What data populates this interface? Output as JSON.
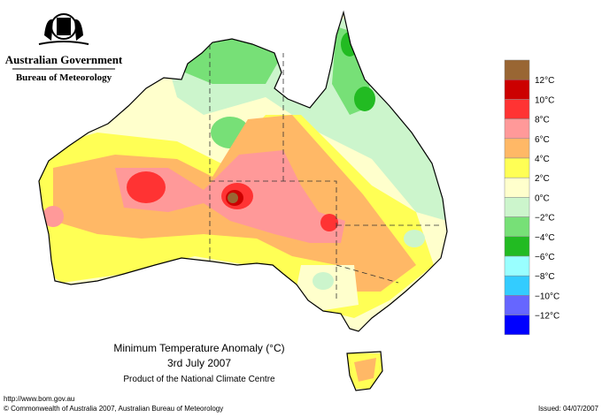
{
  "header": {
    "government": "Australian Government",
    "agency": "Bureau of Meteorology"
  },
  "title": {
    "line1": "Minimum Temperature Anomaly (°C)",
    "line2": "3rd July 2007",
    "line3": "Product of the National Climate Centre"
  },
  "footer": {
    "url": "http://www.bom.gov.au",
    "copyright": "© Commonwealth of Australia 2007, Australian Bureau of Meteorology",
    "issued": "Issued: 04/07/2007"
  },
  "legend": {
    "colors": [
      "#996633",
      "#cc0000",
      "#ff3333",
      "#ff9999",
      "#ffb866",
      "#ffff55",
      "#ffffcc",
      "#ccf5cc",
      "#77e077",
      "#22bb22",
      "#99ffff",
      "#33ccff",
      "#6666ff",
      "#0000ff"
    ],
    "labels": [
      "12°C",
      "10°C",
      "8°C",
      "6°C",
      "4°C",
      "2°C",
      "0°C",
      "−2°C",
      "−4°C",
      "−6°C",
      "−8°C",
      "−10°C",
      "−12°C"
    ]
  }
}
